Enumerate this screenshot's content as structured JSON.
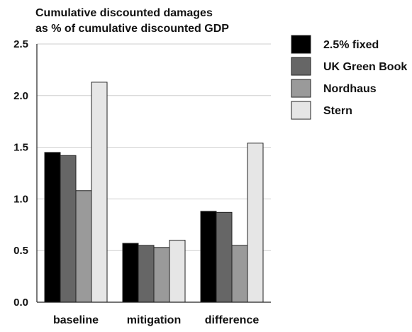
{
  "chart_data": {
    "type": "bar",
    "title": "Cumulative discounted damages",
    "subtitle": "as % of cumulative discounted GDP",
    "xlabel": "",
    "ylabel": "",
    "categories": [
      "baseline",
      "mitigation",
      "difference"
    ],
    "ylim": [
      0,
      2.5
    ],
    "yticks": [
      "0.0",
      "0.5",
      "1.0",
      "1.5",
      "2.0",
      "2.5"
    ],
    "grid": true,
    "legend_position": "right",
    "series": [
      {
        "name": "2.5% fixed",
        "color": "#000000",
        "values": [
          1.45,
          0.57,
          0.88
        ]
      },
      {
        "name": "UK Green Book",
        "color": "#666666",
        "values": [
          1.42,
          0.55,
          0.87
        ]
      },
      {
        "name": "Nordhaus",
        "color": "#9a9a9a",
        "values": [
          1.08,
          0.53,
          0.55
        ]
      },
      {
        "name": "Stern",
        "color": "#e6e6e6",
        "values": [
          2.13,
          0.6,
          1.54
        ]
      }
    ]
  }
}
